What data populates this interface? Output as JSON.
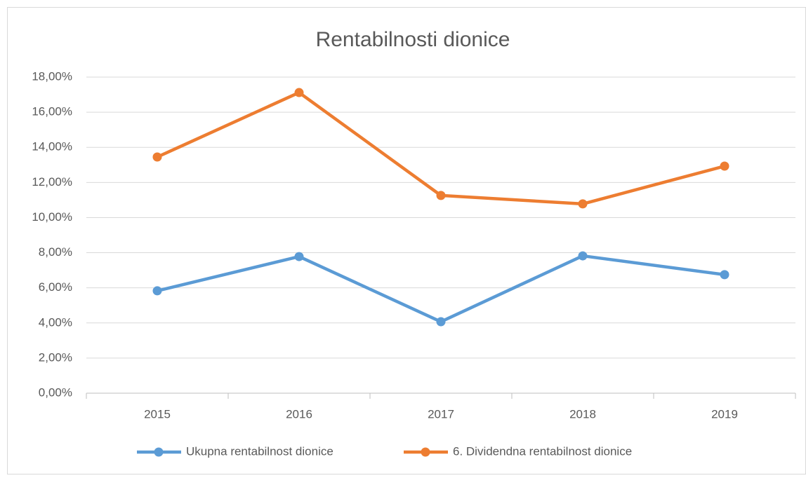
{
  "chart_data": {
    "type": "line",
    "title": "Rentabilnosti dionice",
    "categories": [
      "2015",
      "2016",
      "2017",
      "2018",
      "2019"
    ],
    "series": [
      {
        "name": "Ukupna rentabilnost dionice",
        "color": "#5b9bd5",
        "values": [
          5.83,
          7.78,
          4.07,
          7.82,
          6.75
        ]
      },
      {
        "name": "6. Dividendna rentabilnost dionice",
        "color": "#ed7d31",
        "values": [
          13.45,
          17.12,
          11.26,
          10.78,
          12.93
        ]
      }
    ],
    "ylim": [
      0,
      18
    ],
    "yticks": [
      {
        "value": 0,
        "label": "0,00%"
      },
      {
        "value": 2,
        "label": "2,00%"
      },
      {
        "value": 4,
        "label": "4,00%"
      },
      {
        "value": 6,
        "label": "6,00%"
      },
      {
        "value": 8,
        "label": "8,00%"
      },
      {
        "value": 10,
        "label": "10,00%"
      },
      {
        "value": 12,
        "label": "12,00%"
      },
      {
        "value": 14,
        "label": "14,00%"
      },
      {
        "value": 16,
        "label": "16,00%"
      },
      {
        "value": 18,
        "label": "18,00%"
      }
    ],
    "grid": true,
    "legend": "bottom"
  }
}
